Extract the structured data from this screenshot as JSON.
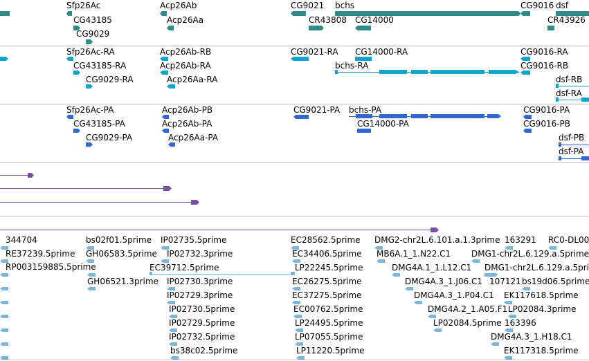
{
  "colors": {
    "gene": "#2e8b8b",
    "mrna": "#10a3cc",
    "protein": "#2f68d4",
    "purple": "#7a4fa8",
    "est": "#7ab6da",
    "divider": "#bbbbbb"
  },
  "track_gene": [
    {
      "label": "Sfp26Ac"
    },
    {
      "label": "CG43185"
    },
    {
      "label": "CG9029"
    },
    {
      "label": "Acp26Ab"
    },
    {
      "label": "Acp26Aa"
    },
    {
      "label": "CG9021"
    },
    {
      "label": "bchs"
    },
    {
      "label": "CR43808"
    },
    {
      "label": "CG14000"
    },
    {
      "label": "CG9016"
    },
    {
      "label": "dsf"
    },
    {
      "label": "CR43926"
    }
  ],
  "track_mrna": [
    {
      "label": "Sfp26Ac-RA"
    },
    {
      "label": "CG43185-RA"
    },
    {
      "label": "CG9029-RA"
    },
    {
      "label": "Acp26Ab-RB"
    },
    {
      "label": "Acp26Ab-RA"
    },
    {
      "label": "Acp26Aa-RA"
    },
    {
      "label": "CG9021-RA"
    },
    {
      "label": "CG14000-RA"
    },
    {
      "label": "bchs-RA"
    },
    {
      "label": "CG9016-RA"
    },
    {
      "label": "CG9016-RB"
    },
    {
      "label": "dsf-RB"
    },
    {
      "label": "dsf-RA"
    }
  ],
  "track_protein": [
    {
      "label": "Sfp26Ac-PA"
    },
    {
      "label": "CG43185-PA"
    },
    {
      "label": "CG9029-PA"
    },
    {
      "label": "Acp26Ab-PB"
    },
    {
      "label": "Acp26Ab-PA"
    },
    {
      "label": "Acp26Aa-PA"
    },
    {
      "label": "CG9021-PA"
    },
    {
      "label": "bchs-PA"
    },
    {
      "label": "CG14000-PA"
    },
    {
      "label": "CG9016-PA"
    },
    {
      "label": "CG9016-PB"
    },
    {
      "label": "dsf-PB"
    },
    {
      "label": "dsf-PA"
    }
  ],
  "track_est": [
    {
      "label": "344704"
    },
    {
      "label": "RE37239.5prime"
    },
    {
      "label": "RP003159885.5prime"
    },
    {
      "label": "bs02f01.5prime"
    },
    {
      "label": "GH06583.5prime"
    },
    {
      "label": "GH06521.3prime"
    },
    {
      "label": "IP02735.5prime"
    },
    {
      "label": "IP02732.3prime"
    },
    {
      "label": "EC39712.5prime"
    },
    {
      "label": "IP02730.3prime"
    },
    {
      "label": "IP02729.3prime"
    },
    {
      "label": "IP02730.5prime"
    },
    {
      "label": "IP02729.5prime"
    },
    {
      "label": "IP02732.5prime"
    },
    {
      "label": "bs38c02.5prime"
    },
    {
      "label": "EC28562.5prime"
    },
    {
      "label": "EC34406.5prime"
    },
    {
      "label": "LP22245.5prime"
    },
    {
      "label": "EC26275.5prime"
    },
    {
      "label": "EC37275.5prime"
    },
    {
      "label": "EC00762.5prime"
    },
    {
      "label": "LP24495.5prime"
    },
    {
      "label": "LP07055.5prime"
    },
    {
      "label": "LP11220.5prime"
    },
    {
      "label": "DMG2-chr2L.6.101.a.1.3prime"
    },
    {
      "label": "163291"
    },
    {
      "label": "RC0-DL00"
    },
    {
      "label": "MB6A.1_1.N22.C1"
    },
    {
      "label": "DMG1-chr2L.6.129.a.5prime"
    },
    {
      "label": "DMG4A.1_1.L12.C1"
    },
    {
      "label": "DMG1-chr2L.6.129.a.5prime"
    },
    {
      "label": "DMG4A.3_1.J06.C1"
    },
    {
      "label": "107121"
    },
    {
      "label": "bs19d06.5prime"
    },
    {
      "label": "DMG4A.3_1.P04.C1"
    },
    {
      "label": "EK117618.5prime"
    },
    {
      "label": "DMG4A.2_1.A05.F1"
    },
    {
      "label": "LP02084.3prime"
    },
    {
      "label": "LP02084.5prime"
    },
    {
      "label": "163396"
    },
    {
      "label": "DMG4A.3_1.H18.C1"
    },
    {
      "label": "EK117318.5prime"
    }
  ]
}
